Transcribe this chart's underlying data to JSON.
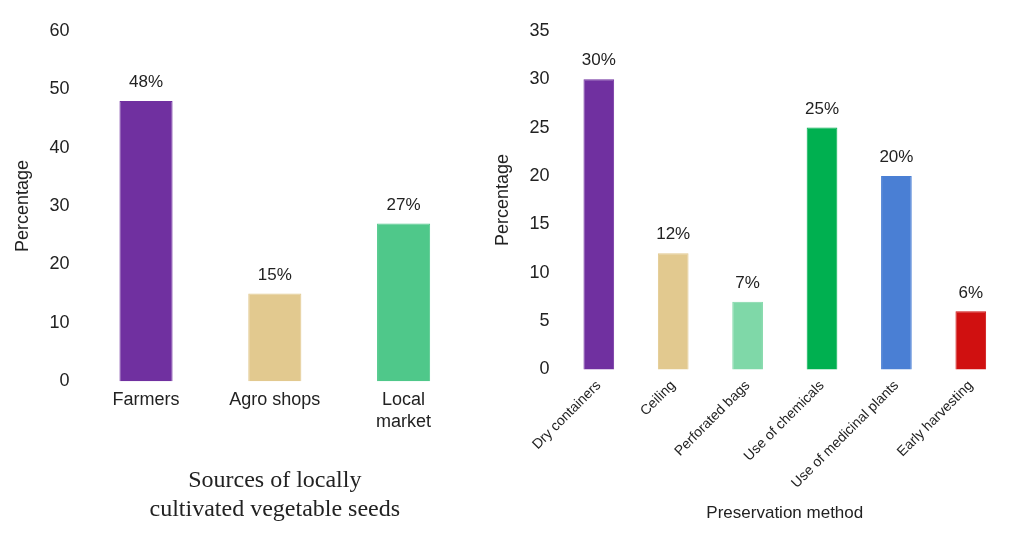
{
  "chart_data": [
    {
      "type": "bar",
      "xlabel": "Sources of locally cultivated vegetable seeds",
      "ylabel": "Percentage",
      "categories": [
        "Farmers",
        "Agro shops",
        "Local market"
      ],
      "values": [
        48,
        15,
        27
      ],
      "colors": [
        "#7030a0",
        "#e2c98f",
        "#4fc88a"
      ],
      "value_labels": [
        "48%",
        "15%",
        "27%"
      ],
      "ylim": [
        0,
        60
      ],
      "yticks": [
        0,
        10,
        20,
        30,
        40,
        50,
        60
      ],
      "grid": false,
      "legend": false
    },
    {
      "type": "bar",
      "xlabel": "Preservation method",
      "ylabel": "Percentage",
      "categories": [
        "Dry containers",
        "Ceiling",
        "Perforated bags",
        "Use of chemicals",
        "Use of medicinal plants",
        "Early harvesting"
      ],
      "values": [
        30,
        12,
        7,
        25,
        20,
        6
      ],
      "colors": [
        "#7030a0",
        "#e2c98f",
        "#7fd8a8",
        "#00b050",
        "#4a7fd4",
        "#d01010"
      ],
      "value_labels": [
        "30%",
        "12%",
        "7%",
        "25%",
        "20%",
        "6%"
      ],
      "ylim": [
        0,
        35
      ],
      "yticks": [
        0,
        5,
        10,
        15,
        20,
        25,
        30,
        35
      ],
      "grid": false,
      "legend": false
    }
  ]
}
